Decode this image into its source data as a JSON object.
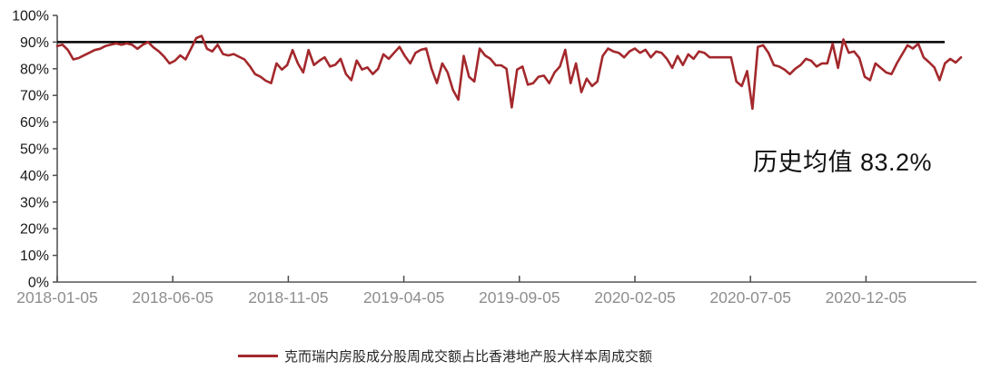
{
  "chart": {
    "annotation_text": "历史均值 83.2%",
    "colors": {
      "series": "#A3282C",
      "reference_line": "#000000",
      "y_axis": "#4d4d4d",
      "x_axis": "#808080",
      "y_tick_label": "#1a1a1a",
      "x_tick_label": "#8E8E8E",
      "annotation": "#111111",
      "legend_label": "#262626"
    },
    "legend": {
      "swatch": "red-line",
      "label": "克而瑞内房股成分股周成交额占比香港地产股大样本周成交额"
    }
  },
  "chart_data": {
    "type": "line",
    "title": "",
    "frequency": "weekly",
    "x_start": "2018-01-05",
    "x_tick_labels": [
      "2018-01-05",
      "2018-06-05",
      "2018-11-05",
      "2019-04-05",
      "2019-09-05",
      "2020-02-05",
      "2020-07-05",
      "2020-12-05"
    ],
    "y_tick_labels": [
      "0%",
      "10%",
      "20%",
      "30%",
      "40%",
      "50%",
      "60%",
      "70%",
      "80%",
      "90%",
      "100%"
    ],
    "ylim": [
      0,
      100
    ],
    "grid": "off",
    "legend_position": "bottom-center",
    "reference_line": {
      "value": 90,
      "color": "#000000"
    },
    "historical_mean_label": "历史均值 83.2%",
    "historical_mean_value": 83.2,
    "series": [
      {
        "name": "克而瑞内房股成分股周成交额占比香港地产股大样本周成交额",
        "color": "#A3282C",
        "unit": "%",
        "values": [
          88.5,
          89,
          87,
          83.5,
          84,
          85,
          86,
          87,
          87.5,
          88.5,
          89,
          89.5,
          89,
          89.5,
          89,
          87.5,
          89,
          90,
          88,
          86.5,
          84.5,
          82,
          83,
          85,
          83.5,
          87.5,
          91.5,
          92.3,
          87.5,
          86.5,
          89,
          85.5,
          85,
          85.5,
          84.5,
          83.5,
          81,
          78,
          77,
          75.5,
          74.6,
          82,
          79.7,
          81.4,
          87,
          82,
          78.6,
          87,
          81.4,
          83,
          84.3,
          80.8,
          81.5,
          83.7,
          78,
          75.7,
          83.1,
          79.7,
          80.5,
          78,
          80,
          85.4,
          83.7,
          86,
          88.2,
          84.8,
          82,
          86,
          87.1,
          87.6,
          80,
          74.6,
          82,
          78.6,
          72,
          68.4,
          84.8,
          77,
          75.2,
          87.6,
          85,
          83.7,
          81.3,
          81.3,
          80,
          65.5,
          79.7,
          80.8,
          74,
          74.6,
          77,
          77.4,
          74.6,
          78.6,
          80.8,
          87.1,
          74.6,
          82,
          71.2,
          76.3,
          73.5,
          75.2,
          84.8,
          87.6,
          86.5,
          86,
          84.3,
          86.5,
          87.6,
          86,
          87.1,
          84.3,
          86.5,
          86,
          83.7,
          80.3,
          84.8,
          81.4,
          85.4,
          83.7,
          86.5,
          86,
          84.3,
          84.3,
          84.3,
          84.3,
          84.3,
          75.2,
          73.5,
          79.1,
          65,
          88.2,
          88.8,
          86,
          81.4,
          80.8,
          79.7,
          78,
          80,
          81.4,
          83.7,
          83,
          80.8,
          82,
          82,
          89.4,
          80.3,
          91,
          86,
          86.5,
          84,
          77,
          75.7,
          82,
          80.3,
          78.6,
          78,
          82,
          85.4,
          88.8,
          87.6,
          89.4,
          84.3,
          82.5,
          80.5,
          75.7,
          82,
          83.7,
          82.3,
          84.3
        ]
      }
    ]
  }
}
